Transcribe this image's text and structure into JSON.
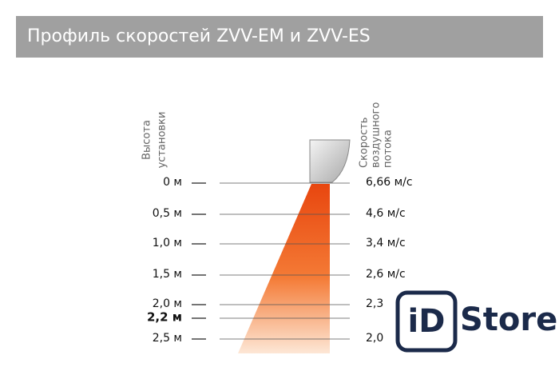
{
  "header": {
    "title": "Профиль скоростей ZVV-EM и ZVV-ES"
  },
  "left_label": [
    "Высота",
    "установки"
  ],
  "right_label": [
    "Скорость",
    "воздушного",
    "потока"
  ],
  "rows": [
    {
      "height": "0 м",
      "speed": "6,66 м/с"
    },
    {
      "height": "0,5 м",
      "speed": "4,6 м/с"
    },
    {
      "height": "1,0 м",
      "speed": "3,4 м/с"
    },
    {
      "height": "1,5 м",
      "speed": "2,6 м/с"
    },
    {
      "height": "2,0 м",
      "speed": "2,3"
    },
    {
      "height": "2,2 м"
    },
    {
      "height": "2,5 м",
      "speed": "2,0"
    }
  ],
  "logo": {
    "mark": "iD",
    "text": "Store"
  }
}
